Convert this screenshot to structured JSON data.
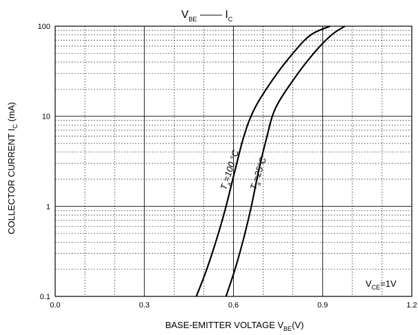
{
  "chart_data": {
    "type": "line",
    "title": {
      "left_main": "V",
      "left_sub": "BE",
      "right_main": "I",
      "right_sub": "C"
    },
    "xlabel": {
      "text": "BASE-EMITTER VOLTAGE",
      "symbol": "V",
      "symbol_sub": "BE",
      "unit": "(V)"
    },
    "ylabel": {
      "text": "COLLECTOR CURRENT",
      "symbol": "I",
      "symbol_sub": "C",
      "unit": "(mA)"
    },
    "xlim": [
      0.0,
      1.2
    ],
    "ylim": [
      0.1,
      100
    ],
    "yscale": "log",
    "grid": true,
    "x_ticks": [
      "0.0",
      "0.3",
      "0.6",
      "0.9",
      "1.2"
    ],
    "y_ticks": [
      "0.1",
      "1",
      "10",
      "100"
    ],
    "annotation": {
      "main": "V",
      "sub": "CE",
      "rest": "=1V"
    },
    "series": [
      {
        "name": "Ta=100°C",
        "label_main": "T",
        "label_sub": "a",
        "label_rest": "=100 °C",
        "x": [
          0.475,
          0.51,
          0.545,
          0.575,
          0.605,
          0.635,
          0.67,
          0.73,
          0.8,
          0.86,
          0.925
        ],
        "y": [
          0.1,
          0.2,
          0.45,
          1.0,
          2.5,
          6.0,
          12,
          25,
          50,
          80,
          100
        ]
      },
      {
        "name": "Ta=25°C",
        "label_main": "T",
        "label_sub": "a",
        "label_rest": "=25°C",
        "x": [
          0.575,
          0.605,
          0.635,
          0.66,
          0.685,
          0.71,
          0.74,
          0.8,
          0.87,
          0.93,
          0.975
        ],
        "y": [
          0.1,
          0.2,
          0.45,
          1.0,
          2.5,
          5.5,
          12,
          25,
          50,
          80,
          100
        ]
      }
    ]
  }
}
